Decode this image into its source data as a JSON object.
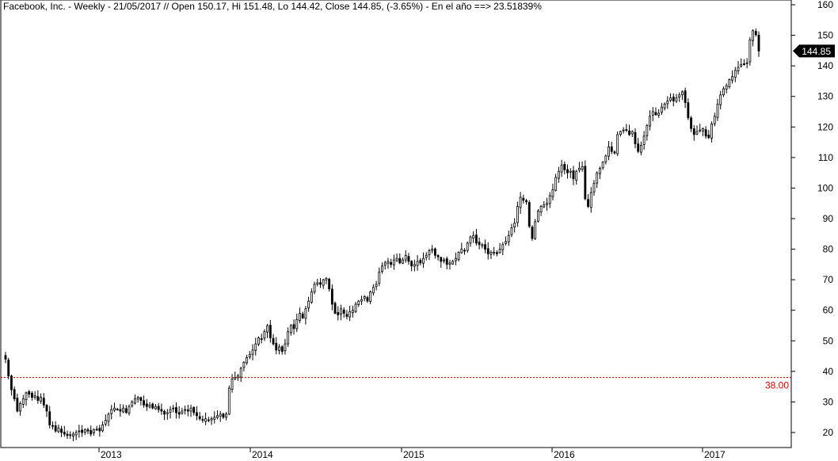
{
  "chart_data": {
    "type": "candlestick",
    "title": "Facebook, Inc. - Weekly - 21/05/2017 // Open 150.17, Hi 151.48, Lo 144.42, Close 144.85, (-3.65%) - En el año ==> 23.51839%",
    "y_ticks": [
      "20",
      "30",
      "40",
      "50",
      "60",
      "70",
      "80",
      "90",
      "100",
      "110",
      "120",
      "130",
      "140",
      "150",
      "160"
    ],
    "ylim": [
      15,
      160
    ],
    "x_ticks": [
      "2013",
      "2014",
      "2015",
      "2016",
      "2017"
    ],
    "last_price_label": "144.85",
    "hline": {
      "value": 38.0,
      "label": "38.00",
      "color": "#e00000",
      "style": "dotted"
    },
    "grid": false,
    "up_color": "#ffffff",
    "down_color": "#000000",
    "weekly_close": [
      44.0,
      38.5,
      34.0,
      31.0,
      27.0,
      29.5,
      31.0,
      33.0,
      32.5,
      31.5,
      32.0,
      30.5,
      31.5,
      29.0,
      27.0,
      22.5,
      22.0,
      20.5,
      21.5,
      20.0,
      19.5,
      19.0,
      19.0,
      19.5,
      20.0,
      20.5,
      20.0,
      21.0,
      20.5,
      19.5,
      21.0,
      21.0,
      20.5,
      22.5,
      24.0,
      26.0,
      27.5,
      28.0,
      27.5,
      27.0,
      28.0,
      26.5,
      28.5,
      30.0,
      31.0,
      31.5,
      30.5,
      29.0,
      28.5,
      29.0,
      28.0,
      28.5,
      27.5,
      27.0,
      26.0,
      26.5,
      27.5,
      28.0,
      26.5,
      26.0,
      27.0,
      27.5,
      27.0,
      28.0,
      26.5,
      25.5,
      24.5,
      24.0,
      24.5,
      24.0,
      24.5,
      25.0,
      25.5,
      26.0,
      25.0,
      26.0,
      34.5,
      37.5,
      38.0,
      38.5,
      41.0,
      43.0,
      44.5,
      45.5,
      47.0,
      49.0,
      51.0,
      50.5,
      53.0,
      55.0,
      51.0,
      49.0,
      47.0,
      48.0,
      46.5,
      49.0,
      53.0,
      55.0,
      54.0,
      57.0,
      59.0,
      57.5,
      60.5,
      63.0,
      66.0,
      68.5,
      69.0,
      68.5,
      70.0,
      70.5,
      67.0,
      62.0,
      59.0,
      58.5,
      60.5,
      59.0,
      58.0,
      59.5,
      60.0,
      62.0,
      63.0,
      63.5,
      64.5,
      63.0,
      66.0,
      67.5,
      68.5,
      72.5,
      74.5,
      75.5,
      76.0,
      75.0,
      76.5,
      77.0,
      75.5,
      76.5,
      78.0,
      76.0,
      74.5,
      75.0,
      76.0,
      75.5,
      77.0,
      78.0,
      79.5,
      80.0,
      78.0,
      77.5,
      76.0,
      76.5,
      75.0,
      75.5,
      76.0,
      77.0,
      79.0,
      80.0,
      79.5,
      82.0,
      84.0,
      84.5,
      82.0,
      81.5,
      81.5,
      80.0,
      78.5,
      79.0,
      79.0,
      78.5,
      80.0,
      81.5,
      82.5,
      84.5,
      87.0,
      88.5,
      94.0,
      97.0,
      96.0,
      95.5,
      87.5,
      83.5,
      89.0,
      92.5,
      94.0,
      94.5,
      95.0,
      97.5,
      99.5,
      103.5,
      105.5,
      107.5,
      106.0,
      105.0,
      105.5,
      103.0,
      105.5,
      106.5,
      107.0,
      96.5,
      94.0,
      98.5,
      101.5,
      105.0,
      106.5,
      108.5,
      110.5,
      113.5,
      112.0,
      111.5,
      117.5,
      118.5,
      119.0,
      119.0,
      117.5,
      118.5,
      114.5,
      112.0,
      114.0,
      117.0,
      120.5,
      123.5,
      125.0,
      124.0,
      124.5,
      126.5,
      127.5,
      128.5,
      129.5,
      128.5,
      129.5,
      130.5,
      131.5,
      128.0,
      123.0,
      119.5,
      117.5,
      118.5,
      119.0,
      119.5,
      117.0,
      116.5,
      121.0,
      123.5,
      127.5,
      130.5,
      132.5,
      133.5,
      135.5,
      136.5,
      138.5,
      139.5,
      140.5,
      140.5,
      141.0,
      148.5,
      151.5,
      150.2,
      144.85
    ]
  }
}
